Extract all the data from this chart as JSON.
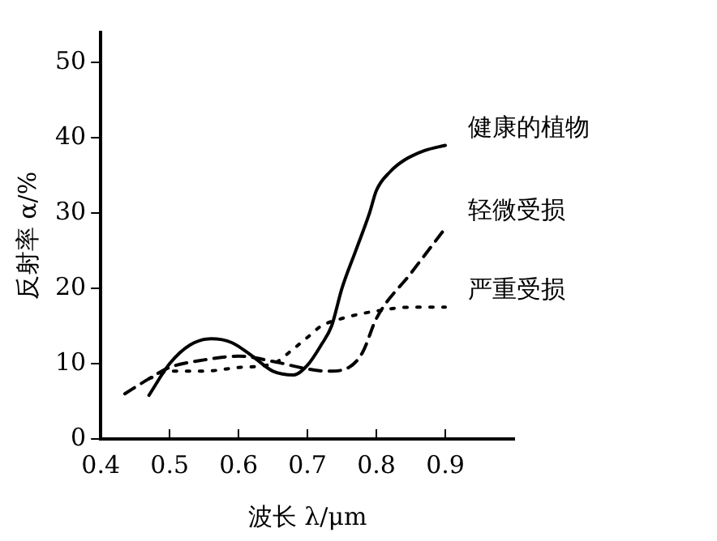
{
  "chart_data": {
    "type": "line",
    "xlabel": "波长 λ/μm",
    "ylabel": "反射率 α/%",
    "xlim": [
      0.4,
      1.0
    ],
    "ylim": [
      0,
      54
    ],
    "xticks": [
      0.4,
      0.5,
      0.6,
      0.7,
      0.8,
      0.9
    ],
    "yticks": [
      0,
      10,
      20,
      30,
      40,
      50
    ],
    "grid": false,
    "legend": false,
    "marker": "none",
    "series": [
      {
        "name": "健康的植物",
        "color": "#000000",
        "line_style": "solid",
        "x": [
          0.47,
          0.5,
          0.53,
          0.56,
          0.59,
          0.62,
          0.65,
          0.68,
          0.7,
          0.72,
          0.735,
          0.75,
          0.77,
          0.79,
          0.8,
          0.82,
          0.84,
          0.87,
          0.9
        ],
        "values": [
          5.8,
          10,
          12.5,
          13.3,
          12.8,
          11,
          9,
          8.5,
          9.8,
          12.5,
          15,
          20,
          25,
          30,
          33,
          35.5,
          37,
          38.3,
          39
        ]
      },
      {
        "name": "轻微受损",
        "color": "#000000",
        "line_style": "dashed",
        "x": [
          0.435,
          0.47,
          0.5,
          0.55,
          0.6,
          0.65,
          0.7,
          0.73,
          0.76,
          0.78,
          0.8,
          0.85,
          0.9
        ],
        "values": [
          6,
          8,
          9.5,
          10.5,
          11,
          10.3,
          9.3,
          9,
          9.5,
          11.5,
          16,
          22,
          28
        ]
      },
      {
        "name": "严重受损",
        "color": "#000000",
        "line_style": "dotted",
        "x": [
          0.47,
          0.5,
          0.55,
          0.6,
          0.65,
          0.68,
          0.7,
          0.72,
          0.75,
          0.8,
          0.85,
          0.9
        ],
        "values": [
          8,
          9,
          9,
          9.5,
          10,
          12,
          13.5,
          15,
          16,
          17,
          17.5,
          17.5
        ]
      }
    ]
  }
}
